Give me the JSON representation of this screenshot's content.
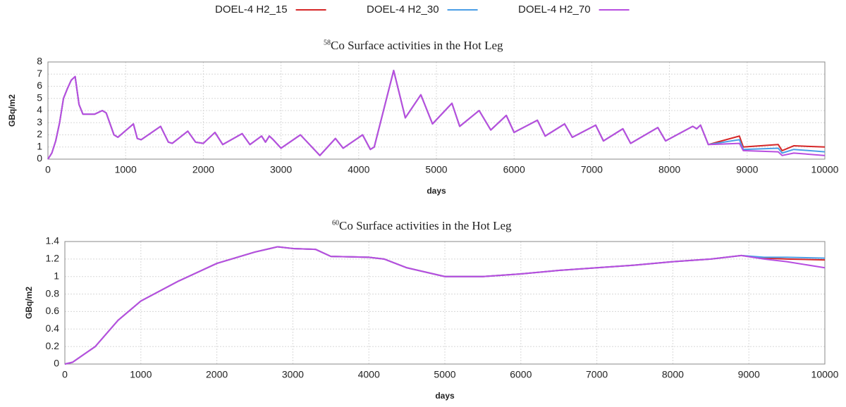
{
  "chart_data": [
    {
      "type": "line",
      "isotope": "58",
      "title": "Co Surface  activities in the Hot Leg",
      "xlabel": "days",
      "ylabel": "GBq/m2",
      "legend": "top",
      "grid": true,
      "xlim": [
        0,
        10000
      ],
      "ylim": [
        0,
        8
      ],
      "xticks": [
        0,
        1000,
        2000,
        3000,
        4000,
        5000,
        6000,
        7000,
        8000,
        9000,
        10000
      ],
      "yticks": [
        0,
        1,
        2,
        3,
        4,
        5,
        6,
        7,
        8
      ],
      "x": [
        0,
        50,
        100,
        150,
        200,
        250,
        300,
        350,
        400,
        450,
        600,
        700,
        750,
        850,
        900,
        1100,
        1150,
        1200,
        1450,
        1550,
        1600,
        1800,
        1900,
        2000,
        2150,
        2250,
        2500,
        2600,
        2750,
        2800,
        2850,
        2900,
        3000,
        3250,
        3500,
        3700,
        3800,
        4050,
        4150,
        4200,
        4450,
        4600,
        4800,
        4950,
        5200,
        5300,
        5550,
        5700,
        5900,
        6000,
        6300,
        6400,
        6650,
        6750,
        7050,
        7150,
        7400,
        7500,
        7850,
        7950,
        8300,
        8350,
        8400,
        8500,
        8900,
        8950,
        9400,
        9450,
        9600,
        10000
      ],
      "series": [
        {
          "name": "DOEL-4 H2_15",
          "color": "#d62728",
          "values": [
            0,
            0.5,
            1.5,
            3,
            5,
            5.8,
            6.5,
            6.8,
            4.5,
            3.7,
            3.7,
            4.0,
            3.8,
            2.0,
            1.8,
            2.9,
            1.7,
            1.6,
            2.7,
            1.4,
            1.3,
            2.3,
            1.4,
            1.3,
            2.2,
            1.2,
            2.1,
            1.2,
            1.9,
            1.4,
            1.9,
            1.6,
            0.9,
            2.0,
            0.3,
            1.7,
            0.9,
            2.0,
            0.8,
            1.0,
            7.3,
            3.4,
            5.3,
            2.9,
            4.6,
            2.7,
            4.0,
            2.4,
            3.6,
            2.2,
            3.2,
            1.9,
            2.9,
            1.8,
            2.8,
            1.5,
            2.5,
            1.3,
            2.6,
            1.5,
            2.7,
            2.5,
            2.8,
            1.2,
            1.9,
            1.0,
            1.2,
            0.7,
            1.1,
            1.0
          ]
        },
        {
          "name": "DOEL-4 H2_30",
          "color": "#4a9ee6",
          "values": [
            0,
            0.5,
            1.5,
            3,
            5,
            5.8,
            6.5,
            6.8,
            4.5,
            3.7,
            3.7,
            4.0,
            3.8,
            2.0,
            1.8,
            2.9,
            1.7,
            1.6,
            2.7,
            1.4,
            1.3,
            2.3,
            1.4,
            1.3,
            2.2,
            1.2,
            2.1,
            1.2,
            1.9,
            1.4,
            1.9,
            1.6,
            0.9,
            2.0,
            0.3,
            1.7,
            0.9,
            2.0,
            0.8,
            1.0,
            7.3,
            3.4,
            5.3,
            2.9,
            4.6,
            2.7,
            4.0,
            2.4,
            3.6,
            2.2,
            3.2,
            1.9,
            2.9,
            1.8,
            2.8,
            1.5,
            2.5,
            1.3,
            2.6,
            1.5,
            2.7,
            2.5,
            2.8,
            1.2,
            1.6,
            0.8,
            0.9,
            0.5,
            0.8,
            0.6
          ]
        },
        {
          "name": "DOEL-4 H2_70",
          "color": "#b84ee0",
          "values": [
            0,
            0.5,
            1.5,
            3,
            5,
            5.8,
            6.5,
            6.8,
            4.5,
            3.7,
            3.7,
            4.0,
            3.8,
            2.0,
            1.8,
            2.9,
            1.7,
            1.6,
            2.7,
            1.4,
            1.3,
            2.3,
            1.4,
            1.3,
            2.2,
            1.2,
            2.1,
            1.2,
            1.9,
            1.4,
            1.9,
            1.6,
            0.9,
            2.0,
            0.3,
            1.7,
            0.9,
            2.0,
            0.8,
            1.0,
            7.3,
            3.4,
            5.3,
            2.9,
            4.6,
            2.7,
            4.0,
            2.4,
            3.6,
            2.2,
            3.2,
            1.9,
            2.9,
            1.8,
            2.8,
            1.5,
            2.5,
            1.3,
            2.6,
            1.5,
            2.7,
            2.5,
            2.8,
            1.2,
            1.3,
            0.7,
            0.6,
            0.3,
            0.5,
            0.3
          ]
        }
      ]
    },
    {
      "type": "line",
      "isotope": "60",
      "title": "Co Surface  activities in the Hot Leg",
      "xlabel": "days",
      "ylabel": "GBq/m2",
      "grid": true,
      "xlim": [
        0,
        10000
      ],
      "ylim": [
        0,
        1.4
      ],
      "xticks": [
        0,
        1000,
        2000,
        3000,
        4000,
        5000,
        6000,
        7000,
        8000,
        9000,
        10000
      ],
      "yticks": [
        0,
        0.2,
        0.4,
        0.6,
        0.8,
        1,
        1.2,
        1.4
      ],
      "x": [
        0,
        100,
        400,
        700,
        1000,
        1500,
        2000,
        2500,
        2800,
        3000,
        3300,
        3500,
        4000,
        4200,
        4500,
        5000,
        5500,
        6000,
        6500,
        7000,
        7500,
        8000,
        8500,
        8900,
        9200,
        9500,
        10000
      ],
      "series": [
        {
          "color": "#d62728",
          "values": [
            0,
            0.02,
            0.2,
            0.5,
            0.72,
            0.95,
            1.15,
            1.28,
            1.34,
            1.32,
            1.31,
            1.23,
            1.22,
            1.2,
            1.1,
            1.0,
            1.0,
            1.03,
            1.07,
            1.1,
            1.13,
            1.17,
            1.2,
            1.24,
            1.21,
            1.2,
            1.19
          ]
        },
        {
          "color": "#4a9ee6",
          "values": [
            0,
            0.02,
            0.2,
            0.5,
            0.72,
            0.95,
            1.15,
            1.28,
            1.34,
            1.32,
            1.31,
            1.23,
            1.22,
            1.2,
            1.1,
            1.0,
            1.0,
            1.03,
            1.07,
            1.1,
            1.13,
            1.17,
            1.2,
            1.24,
            1.22,
            1.22,
            1.21
          ]
        },
        {
          "color": "#b84ee0",
          "values": [
            0,
            0.02,
            0.2,
            0.5,
            0.72,
            0.95,
            1.15,
            1.28,
            1.34,
            1.32,
            1.31,
            1.23,
            1.22,
            1.2,
            1.1,
            1.0,
            1.0,
            1.03,
            1.07,
            1.1,
            1.13,
            1.17,
            1.2,
            1.24,
            1.2,
            1.17,
            1.1
          ]
        }
      ]
    }
  ]
}
